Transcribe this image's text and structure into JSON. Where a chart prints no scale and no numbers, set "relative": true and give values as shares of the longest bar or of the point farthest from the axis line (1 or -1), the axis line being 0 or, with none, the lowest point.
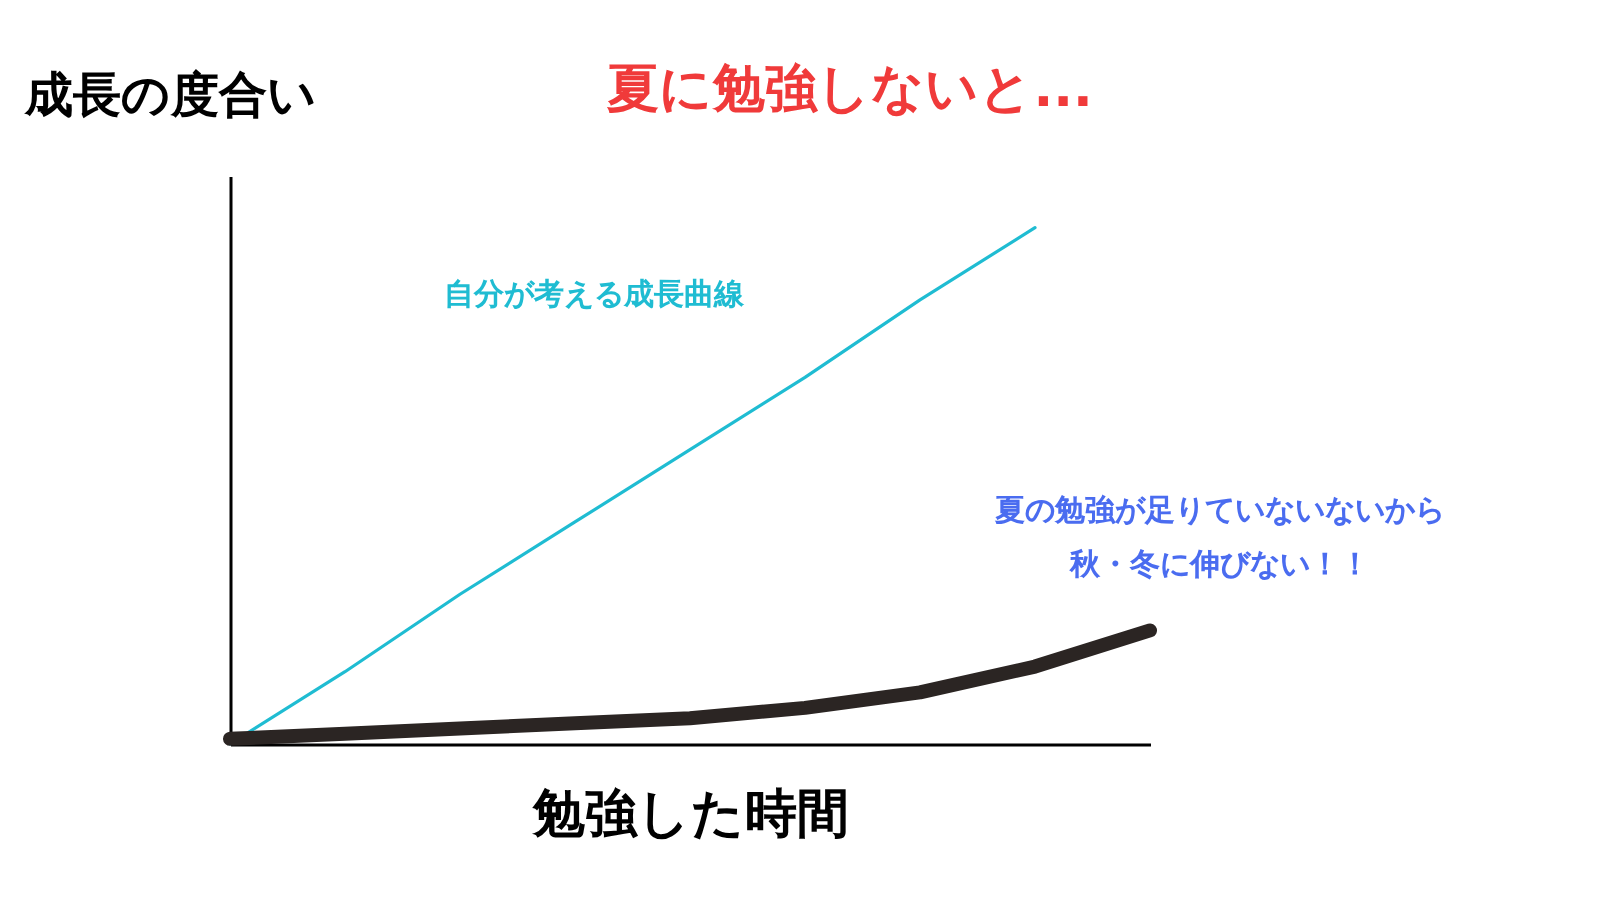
{
  "chart_data": {
    "type": "line",
    "title": "夏に勉強しないと...",
    "xlabel": "勉強した時間",
    "ylabel": "成長の度合い",
    "relative": true,
    "grid": false,
    "categories": [
      null,
      null,
      null,
      null,
      null,
      null,
      null,
      null,
      null
    ],
    "series": [
      {
        "color": "#1fbcd2",
        "values": [
          0,
          0.14,
          0.29,
          0.43,
          0.57,
          0.71,
          0.86,
          1,
          null
        ]
      },
      {
        "color": "#2b2523",
        "values": [
          0.01,
          0.02,
          0.03,
          0.04,
          0.05,
          0.07,
          0.1,
          0.15,
          0.22
        ]
      }
    ],
    "annotations": [
      "自分が考える成長曲線",
      "夏の勉強が足りていないないから",
      "秋・冬に伸びない！！"
    ]
  }
}
